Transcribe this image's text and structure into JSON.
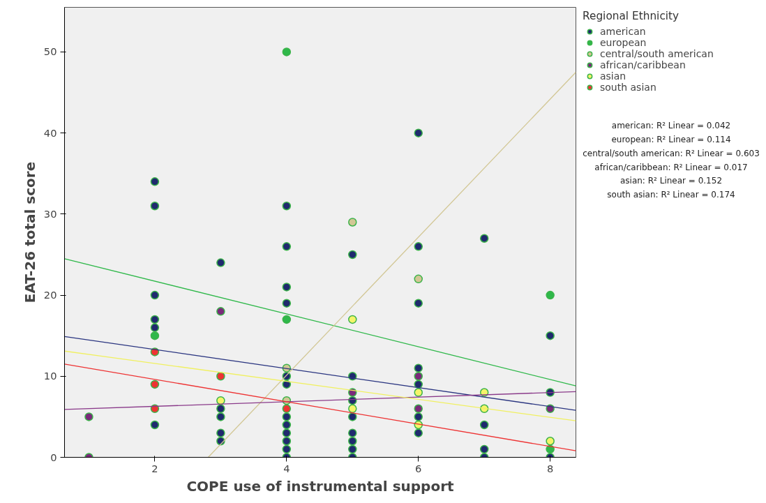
{
  "chart_data": {
    "type": "scatter",
    "xlabel": "COPE use of instrumental support",
    "ylabel": "EAT-26 total score",
    "legend_title": "Regional Ethnicity",
    "legend": "right",
    "grid": false,
    "marker": "circle",
    "xlim": [
      0.63,
      8.39
    ],
    "ylim": [
      0,
      55.5
    ],
    "xticks": [
      2,
      4,
      6,
      8
    ],
    "yticks": [
      0,
      10,
      20,
      30,
      40,
      50
    ],
    "series": [
      {
        "name": "american",
        "color": "#1f2a6e",
        "x": [
          2,
          2,
          2,
          2,
          2,
          2,
          3,
          3,
          3,
          3,
          3,
          4,
          4,
          4,
          4,
          4,
          4,
          4,
          4,
          4,
          4,
          4,
          4,
          5,
          5,
          5,
          5,
          5,
          5,
          5,
          5,
          6,
          6,
          6,
          6,
          6,
          6,
          6,
          7,
          7,
          7,
          7,
          8,
          8,
          8
        ],
        "values": [
          34,
          31,
          20,
          17,
          16,
          4,
          24,
          6,
          5,
          3,
          2,
          31,
          26,
          21,
          19,
          10,
          9,
          5,
          4,
          3,
          2,
          1,
          0,
          25,
          10,
          7,
          5,
          3,
          2,
          1,
          0,
          40,
          26,
          19,
          11,
          9,
          5,
          3,
          27,
          4,
          1,
          0,
          15,
          8,
          0
        ]
      },
      {
        "name": "european",
        "color": "#2fb84a",
        "x": [
          2,
          4,
          4,
          8,
          8
        ],
        "values": [
          15,
          50,
          17,
          20,
          1
        ]
      },
      {
        "name": "central/south american",
        "color": "#d2c795",
        "x": [
          4,
          4,
          5,
          6
        ],
        "values": [
          11,
          7,
          29,
          22
        ]
      },
      {
        "name": "african/caribbean",
        "color": "#7a2a7a",
        "x": [
          1,
          1,
          3,
          5,
          6,
          6,
          8
        ],
        "values": [
          5,
          0,
          18,
          8,
          10,
          6,
          6
        ]
      },
      {
        "name": "asian",
        "color": "#f4f46a",
        "x": [
          3,
          5,
          5,
          6,
          6,
          7,
          7,
          8
        ],
        "values": [
          7,
          17,
          6,
          8,
          4,
          8,
          6,
          2
        ]
      },
      {
        "name": "south asian",
        "color": "#ee3333",
        "x": [
          2,
          2,
          2,
          3,
          4
        ],
        "values": [
          13,
          9,
          6,
          10,
          6
        ]
      },
      {
        "color": "#2a3580",
        "type": "line",
        "marker": "none",
        "x": [
          0.63,
          8.39
        ],
        "values": [
          14.9,
          5.8
        ]
      },
      {
        "color": "#2fb84a",
        "type": "line",
        "marker": "none",
        "x": [
          0.63,
          8.39
        ],
        "values": [
          24.5,
          8.8
        ]
      },
      {
        "color": "#d2c795",
        "type": "line",
        "marker": "none",
        "x": [
          2.81,
          8.39
        ],
        "values": [
          0,
          47.5
        ]
      },
      {
        "color": "#8a3a8a",
        "type": "line",
        "marker": "none",
        "x": [
          0.63,
          8.39
        ],
        "values": [
          5.9,
          8.1
        ]
      },
      {
        "color": "#f0f060",
        "type": "line",
        "marker": "none",
        "x": [
          0.63,
          8.39
        ],
        "values": [
          13.1,
          4.5
        ]
      },
      {
        "color": "#ee3333",
        "type": "line",
        "marker": "none",
        "x": [
          0.63,
          8.39
        ],
        "values": [
          11.5,
          0.8
        ]
      }
    ],
    "annotations": [
      "american: R² Linear = 0.042",
      "european: R² Linear = 0.114",
      "central/south american: R² Linear = 0.603",
      "african/caribbean: R² Linear = 0.017",
      "asian: R² Linear = 0.152",
      "south asian: R² Linear = 0.174"
    ]
  }
}
